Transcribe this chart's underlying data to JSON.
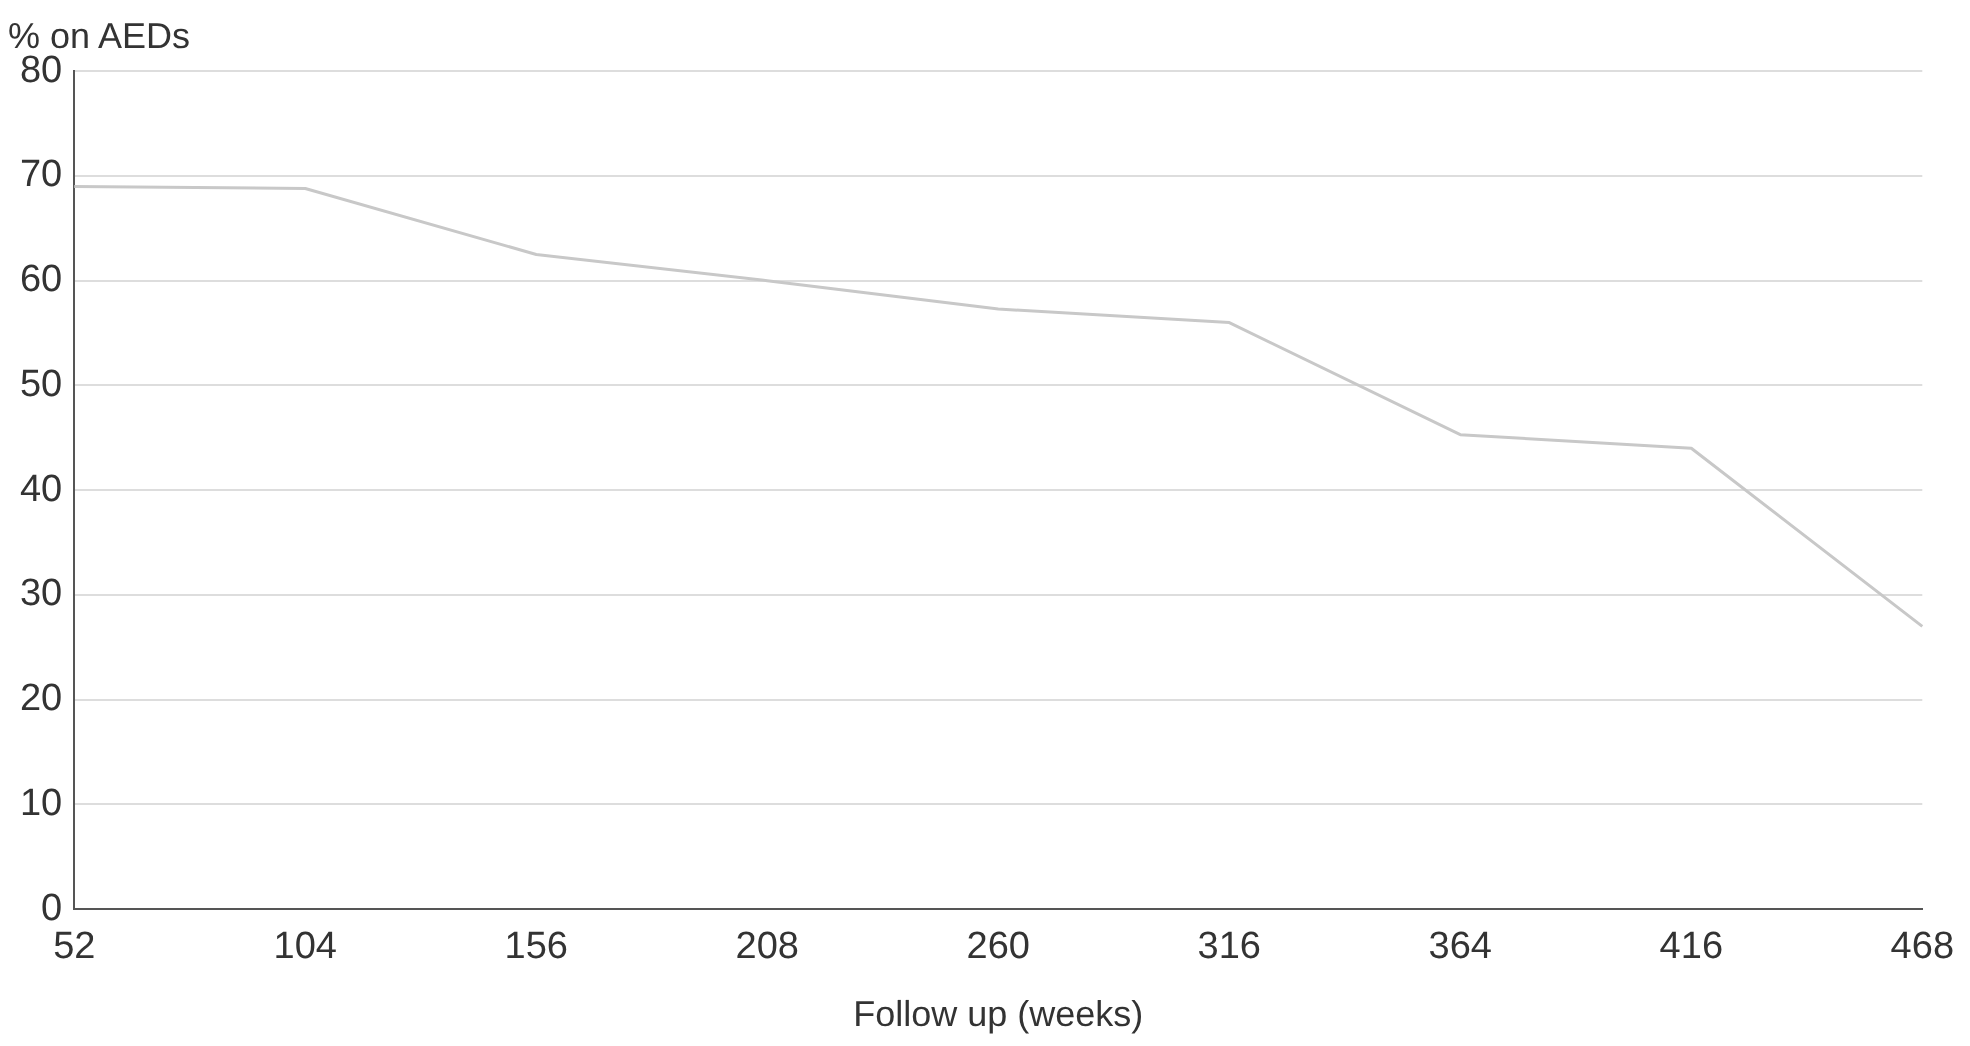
{
  "chart_data": {
    "type": "line",
    "ylabel": "% on AEDs",
    "xlabel": "Follow up (weeks)",
    "categories": [
      "52",
      "104",
      "156",
      "208",
      "260",
      "316",
      "364",
      "416",
      "468"
    ],
    "series": [
      {
        "color": "#c8c8c8",
        "values": [
          69,
          68.8,
          62.5,
          60,
          57.3,
          56,
          45.3,
          44,
          27
        ]
      }
    ],
    "ylim": [
      0,
      80
    ],
    "yticks": [
      0,
      10,
      20,
      30,
      40,
      50,
      60,
      70,
      80
    ],
    "grid": "y",
    "legend": false,
    "marker": "none",
    "line_style": "solid"
  }
}
